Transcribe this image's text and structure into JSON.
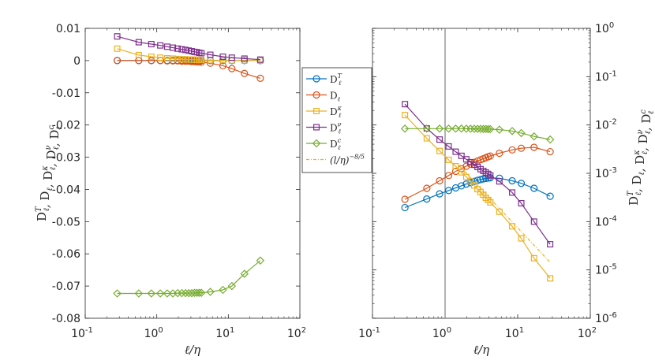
{
  "chart_data": [
    {
      "type": "line",
      "xlabel": "ℓ/η",
      "ylabel": "D_ℓ^T, D_ℓ, D_ℓ^κ, D_ℓ^ν, D_ℓ^c",
      "x_scale": "log",
      "y_scale": "linear",
      "xlim": [
        0.1,
        100
      ],
      "ylim": [
        -0.08,
        0.01
      ],
      "xticks": [
        0.1,
        1,
        10,
        100
      ],
      "xtick_labels": [
        "10",
        "10",
        "10",
        "10"
      ],
      "xtick_exponents": [
        "-1",
        "0",
        "1",
        "2"
      ],
      "yticks": [
        0.01,
        0,
        -0.01,
        -0.02,
        -0.03,
        -0.04,
        -0.05,
        -0.06,
        -0.07,
        -0.08
      ],
      "ytick_labels": [
        "0.01",
        "0",
        "-0.01",
        "-0.02",
        "-0.03",
        "-0.04",
        "-0.05",
        "-0.06",
        "-0.07",
        "-0.08"
      ],
      "series": [
        {
          "name": "D_ℓ^T",
          "color": "#0072BD",
          "marker": "circle",
          "x": [
            0.28,
            0.56,
            0.84,
            1.12,
            1.4,
            1.68,
            1.96,
            2.24,
            2.52,
            2.8,
            3.08,
            3.36,
            3.64,
            3.92,
            4.2,
            5.6,
            8.4,
            11.2,
            16.8,
            28
          ],
          "y": [
            0,
            0,
            0,
            0,
            0,
            0,
            0,
            0,
            0,
            0,
            0,
            0,
            0,
            0,
            0,
            0,
            0,
            0,
            0,
            0
          ]
        },
        {
          "name": "D_ℓ",
          "color": "#D95319",
          "marker": "circle",
          "x": [
            0.28,
            0.56,
            0.84,
            1.12,
            1.4,
            1.68,
            1.96,
            2.24,
            2.52,
            2.8,
            3.08,
            3.36,
            3.64,
            3.92,
            4.2,
            5.6,
            8.4,
            11.2,
            16.8,
            28
          ],
          "y": [
            0,
            0,
            0,
            0,
            -0.0001,
            -0.0001,
            -0.0001,
            -0.0002,
            -0.0002,
            -0.0002,
            -0.0003,
            -0.0003,
            -0.0004,
            -0.0004,
            -0.0005,
            -0.0008,
            -0.0016,
            -0.0025,
            -0.004,
            -0.0055
          ]
        },
        {
          "name": "D_ℓ^κ",
          "color": "#EDB120",
          "marker": "square",
          "x": [
            0.28,
            0.56,
            0.84,
            1.12,
            1.4,
            1.68,
            1.96,
            2.24,
            2.52,
            2.8,
            3.08,
            3.36,
            3.64,
            3.92,
            4.2,
            5.6,
            8.4,
            11.2,
            16.8,
            28
          ],
          "y": [
            0.0037,
            0.0017,
            0.0012,
            0.0009,
            0.0007,
            0.0006,
            0.0005,
            0.0004,
            0.0004,
            0.0003,
            0.0003,
            0.0003,
            0.0002,
            0.0002,
            0.0002,
            0.0001,
            0.0001,
            0,
            0,
            0
          ]
        },
        {
          "name": "D_ℓ^ν",
          "color": "#7E2F8E",
          "marker": "square",
          "x": [
            0.28,
            0.56,
            0.84,
            1.12,
            1.4,
            1.68,
            1.96,
            2.24,
            2.52,
            2.8,
            3.08,
            3.36,
            3.64,
            3.92,
            4.2,
            5.6,
            8.4,
            11.2,
            16.8,
            28
          ],
          "y": [
            0.0075,
            0.0057,
            0.0051,
            0.0047,
            0.0043,
            0.004,
            0.0037,
            0.0035,
            0.0033,
            0.0031,
            0.0029,
            0.0027,
            0.0026,
            0.0024,
            0.0023,
            0.0018,
            0.0012,
            0.0009,
            0.0006,
            0.0003
          ]
        },
        {
          "name": "D_ℓ^c",
          "color": "#77AC30",
          "marker": "diamond",
          "x": [
            0.28,
            0.56,
            0.84,
            1.12,
            1.4,
            1.68,
            1.96,
            2.24,
            2.52,
            2.8,
            3.08,
            3.36,
            3.64,
            3.92,
            4.2,
            5.6,
            8.4,
            11.2,
            16.8,
            28
          ],
          "y": [
            -0.0723,
            -0.0723,
            -0.0723,
            -0.0723,
            -0.0723,
            -0.0723,
            -0.0722,
            -0.0722,
            -0.0722,
            -0.0722,
            -0.0722,
            -0.0721,
            -0.0721,
            -0.0721,
            -0.0721,
            -0.0718,
            -0.0712,
            -0.07,
            -0.0662,
            -0.0621
          ]
        }
      ]
    },
    {
      "type": "line",
      "xlabel": "ℓ/η",
      "ylabel": "D_ℓ^T, D_ℓ, D_ℓ^κ, D_ℓ^ν, D_ℓ^c",
      "x_scale": "log",
      "y_scale": "log",
      "y_axis_side": "right",
      "xlim": [
        0.1,
        100
      ],
      "ylim": [
        1e-06,
        1
      ],
      "xticks": [
        0.1,
        1,
        10,
        100
      ],
      "xtick_labels": [
        "10",
        "10",
        "10",
        "10"
      ],
      "xtick_exponents": [
        "-1",
        "0",
        "1",
        "2"
      ],
      "yticks": [
        1,
        0.1,
        0.01,
        0.001,
        0.0001,
        1e-05,
        1e-06
      ],
      "ytick_labels": [
        "10",
        "10",
        "10",
        "10",
        "10",
        "10",
        "10"
      ],
      "ytick_exponents": [
        "0",
        "-1",
        "-2",
        "-3",
        "-4",
        "-5",
        "-6"
      ],
      "vertical_line_x": 1,
      "series": [
        {
          "name": "D_ℓ^T",
          "color": "#0072BD",
          "marker": "circle",
          "x": [
            0.28,
            0.56,
            0.84,
            1.12,
            1.4,
            1.68,
            1.96,
            2.24,
            2.52,
            2.8,
            3.08,
            3.36,
            3.64,
            3.92,
            4.2,
            5.6,
            8.4,
            11.2,
            16.8,
            28
          ],
          "y": [
            0.000195,
            0.000294,
            0.000375,
            0.00044,
            0.0005,
            0.00055,
            0.0006,
            0.00064,
            0.00068,
            0.000715,
            0.00074,
            0.000765,
            0.000785,
            0.0008,
            0.00081,
            0.00079,
            0.0007,
            0.00062,
            0.00049,
            0.000335
          ]
        },
        {
          "name": "D_ℓ",
          "color": "#D95319",
          "marker": "circle",
          "x": [
            0.28,
            0.56,
            0.84,
            1.12,
            1.4,
            1.68,
            1.96,
            2.24,
            2.52,
            2.8,
            3.08,
            3.36,
            3.64,
            3.92,
            4.2,
            5.6,
            8.4,
            11.2,
            16.8,
            28
          ],
          "y": [
            0.00029,
            0.00049,
            0.0007,
            0.0009,
            0.0011,
            0.00125,
            0.0014,
            0.00155,
            0.00168,
            0.0018,
            0.0019,
            0.002,
            0.0021,
            0.0022,
            0.00228,
            0.0026,
            0.00305,
            0.0033,
            0.00345,
            0.0028
          ]
        },
        {
          "name": "D_ℓ^κ",
          "color": "#EDB120",
          "marker": "square",
          "x": [
            0.28,
            0.56,
            0.84,
            1.12,
            1.4,
            1.68,
            1.96,
            2.24,
            2.52,
            2.8,
            3.08,
            3.36,
            3.64,
            3.92,
            4.2,
            5.6,
            8.4,
            11.2,
            16.8,
            28
          ],
          "y": [
            0.016,
            0.0053,
            0.0029,
            0.0019,
            0.0014,
            0.00105,
            0.00084,
            0.00068,
            0.00056,
            0.00047,
            0.00041,
            0.00036,
            0.00031,
            0.00028,
            0.00025,
            0.00016,
            8e-05,
            4.5e-05,
            1.75e-05,
            6.7e-06
          ]
        },
        {
          "name": "D_ℓ^ν",
          "color": "#7E2F8E",
          "marker": "square",
          "x": [
            0.28,
            0.56,
            0.84,
            1.12,
            1.4,
            1.68,
            1.96,
            2.24,
            2.52,
            2.8,
            3.08,
            3.36,
            3.64,
            3.92,
            4.2,
            5.6,
            8.4,
            11.2,
            16.8,
            28
          ],
          "y": [
            0.027,
            0.0085,
            0.005,
            0.0036,
            0.0028,
            0.0023,
            0.00195,
            0.0017,
            0.0015,
            0.00135,
            0.00122,
            0.00112,
            0.00104,
            0.00097,
            0.0009,
            0.00068,
            0.0004,
            0.00024,
            0.0001,
            3.4e-05
          ]
        },
        {
          "name": "D_ℓ^c",
          "color": "#77AC30",
          "marker": "diamond",
          "x": [
            0.28,
            0.56,
            0.84,
            1.12,
            1.4,
            1.68,
            1.96,
            2.24,
            2.52,
            2.8,
            3.08,
            3.36,
            3.64,
            3.92,
            4.2,
            5.6,
            8.4,
            11.2,
            16.8,
            28
          ],
          "y": [
            0.0084,
            0.0084,
            0.0084,
            0.0084,
            0.0084,
            0.0084,
            0.00838,
            0.00836,
            0.00834,
            0.00832,
            0.0083,
            0.00828,
            0.00826,
            0.00824,
            0.00822,
            0.008,
            0.0075,
            0.0068,
            0.0058,
            0.005
          ]
        },
        {
          "name": "(l/η)^-8/5",
          "color": "#EDB120",
          "marker": "none",
          "dashed": true,
          "x": [
            1.6,
            28
          ],
          "y": [
            0.0014,
            1.44e-05
          ]
        }
      ]
    }
  ],
  "legend": {
    "placement": "between-panels",
    "entries": [
      {
        "base": "D",
        "sub": "ℓ",
        "sup": "T",
        "color": "#0072BD",
        "marker": "circle"
      },
      {
        "base": "D",
        "sub": "ℓ",
        "sup": "",
        "color": "#D95319",
        "marker": "circle"
      },
      {
        "base": "D",
        "sub": "ℓ",
        "sup": "κ",
        "color": "#EDB120",
        "marker": "square"
      },
      {
        "base": "D",
        "sub": "ℓ",
        "sup": "ν",
        "color": "#7E2F8E",
        "marker": "square"
      },
      {
        "base": "D",
        "sub": "ℓ",
        "sup": "c",
        "color": "#77AC30",
        "marker": "diamond"
      },
      {
        "base": "(l/η)",
        "sub": "",
        "sup": "−8/5",
        "color": "#EDB120",
        "marker": "none",
        "dashed": true
      }
    ]
  },
  "axis_text": {
    "xlabel_main": "ℓ/η",
    "ylabel_parts": [
      {
        "sup": "T"
      },
      {
        "sup": ""
      },
      {
        "sup": "κ"
      },
      {
        "sup": "ν"
      },
      {
        "sup": "c"
      }
    ],
    "ylabel_base": "D",
    "ylabel_sub": "ℓ",
    "ylabel_sep": ", "
  }
}
